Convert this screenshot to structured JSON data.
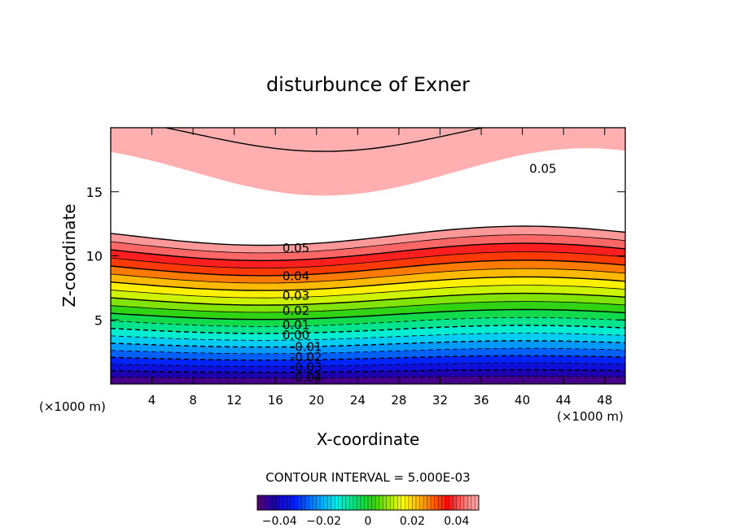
{
  "chart_data": {
    "type": "contour",
    "title": "disturbunce of Exner",
    "xlabel": "X-coordinate",
    "ylabel": "Z-coordinate",
    "x_unit_left": "(×1000 m)",
    "x_unit_right": "(×1000 m)",
    "xlim": [
      0,
      50
    ],
    "ylim": [
      0,
      20
    ],
    "xticks": [
      4,
      8,
      12,
      16,
      20,
      24,
      28,
      32,
      36,
      40,
      44,
      48
    ],
    "yticks": [
      5,
      10,
      15
    ],
    "contour_interval_text": "CONTOUR INTERVAL = 5.000E-03",
    "contour_interval": 0.005,
    "field_range": [
      -0.05,
      0.05
    ],
    "palette": "rainbow (purple-blue-cyan-green-yellow-orange-red-pink)",
    "colorbar": {
      "range": [
        -0.05,
        0.05
      ],
      "ticks": [
        {
          "value": -0.04,
          "label": "−0.04"
        },
        {
          "value": -0.02,
          "label": "−0.02"
        },
        {
          "value": 0,
          "label": "0"
        },
        {
          "value": 0.02,
          "label": "0.02"
        },
        {
          "value": 0.04,
          "label": "0.04"
        }
      ]
    },
    "contour_labels": [
      {
        "text": "0.05",
        "x": 42,
        "z": 16.8
      },
      {
        "text": "0.05",
        "x": 18,
        "z": 10.6
      },
      {
        "text": "0.04",
        "x": 18,
        "z": 8.4
      },
      {
        "text": "0.03",
        "x": 18,
        "z": 6.9
      },
      {
        "text": "0.02",
        "x": 18,
        "z": 5.7
      },
      {
        "text": "0.01",
        "x": 18,
        "z": 4.6
      },
      {
        "text": "0.00",
        "x": 18,
        "z": 3.8
      },
      {
        "text": "-0.01",
        "x": 19,
        "z": 2.9
      },
      {
        "text": "-0.02",
        "x": 19,
        "z": 2.1
      },
      {
        "text": "-0.03",
        "x": 19,
        "z": 1.3
      },
      {
        "text": "-0.04",
        "x": 19,
        "z": 0.5
      }
    ]
  }
}
